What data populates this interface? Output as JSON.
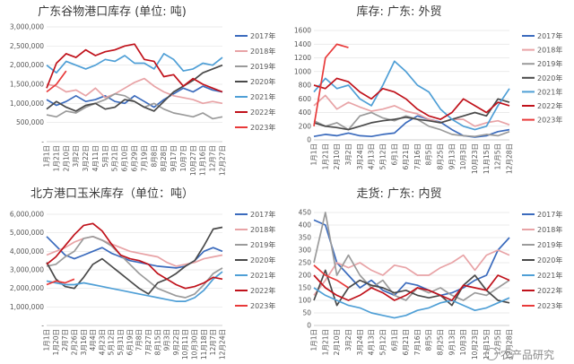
{
  "colors": [
    "#3b6bbd",
    "#e8a3a6",
    "#9b9b9b",
    "#4a4a4a",
    "#4f9fd6",
    "#c0121b",
    "#e83a3a"
  ],
  "watermark": "农产品研究",
  "chart_data": [
    {
      "type": "line",
      "title": "广东谷物港口库存 (单位: 吨)",
      "ylim": [
        0,
        3000000
      ],
      "yticks": [
        "-",
        "500,000",
        "1,000,000",
        "1,500,000",
        "2,000,000",
        "2,500,000",
        "3,000,000"
      ],
      "xticks": [
        "1月1日",
        "1月21日",
        "2月10日",
        "3月2日",
        "3月22日",
        "4月11日",
        "5月1日",
        "5月21日",
        "6月10日",
        "6月29日",
        "7月19日",
        "8月8日",
        "8月28日",
        "9月17日",
        "10月7日",
        "10月27日",
        "11月16日",
        "12月7日",
        "12月27日"
      ],
      "grid": true,
      "legend_position": "right",
      "series": [
        {
          "name": "2017年",
          "values": [
            1100000,
            950000,
            1050000,
            1200000,
            1050000,
            1100000,
            1200000,
            1050000,
            1000000,
            1200000,
            1050000,
            900000,
            1100000,
            1250000,
            1400000,
            1300000,
            1450000,
            1350000,
            1300000
          ]
        },
        {
          "name": "2018年",
          "values": [
            1500000,
            1450000,
            1300000,
            1350000,
            1200000,
            1400000,
            1150000,
            1250000,
            1400000,
            1550000,
            1650000,
            1450000,
            1300000,
            1200000,
            1150000,
            1100000,
            1000000,
            1050000,
            1000000
          ]
        },
        {
          "name": "2019年",
          "values": [
            700000,
            650000,
            800000,
            750000,
            900000,
            1000000,
            1100000,
            1250000,
            1200000,
            1050000,
            900000,
            1000000,
            850000,
            750000,
            700000,
            650000,
            750000,
            600000,
            650000
          ]
        },
        {
          "name": "2020年",
          "values": [
            850000,
            1050000,
            900000,
            800000,
            950000,
            1000000,
            850000,
            900000,
            1100000,
            1050000,
            900000,
            800000,
            1050000,
            1300000,
            1450000,
            1600000,
            1800000,
            1900000,
            2000000
          ]
        },
        {
          "name": "2021年",
          "values": [
            2000000,
            1800000,
            2100000,
            2000000,
            1900000,
            2000000,
            2150000,
            2100000,
            2250000,
            2050000,
            2050000,
            1900000,
            2300000,
            2150000,
            1850000,
            1900000,
            2050000,
            2000000,
            2200000
          ]
        },
        {
          "name": "2022年",
          "values": [
            1400000,
            2050000,
            2300000,
            2200000,
            2400000,
            2250000,
            2350000,
            2400000,
            2500000,
            2550000,
            2150000,
            2100000,
            1700000,
            1750000,
            1450000,
            1650000,
            1500000,
            1400000,
            1300000
          ]
        },
        {
          "name": "2023年",
          "values": [
            1300000,
            1500000,
            1850000
          ]
        }
      ]
    },
    {
      "type": "line",
      "title": "库存: 广东: 外贸",
      "ylim": [
        0,
        1600
      ],
      "yticks": [
        "0",
        "200",
        "400",
        "600",
        "800",
        "1000",
        "1200",
        "1400",
        "1600"
      ],
      "xticks": [
        "1月1日",
        "1月21日",
        "2月10日",
        "3月2日",
        "3月24日",
        "4月13日",
        "5月12日",
        "6月1日",
        "6月21日",
        "7月16日",
        "8月5日",
        "8月25日",
        "9月13日",
        "10月3日",
        "10月23日",
        "11月15日",
        "12月5日",
        "12月28日"
      ],
      "grid": true,
      "legend_position": "right",
      "series": [
        {
          "name": "2017年",
          "values": [
            50,
            80,
            60,
            100,
            60,
            50,
            80,
            100,
            250,
            350,
            300,
            260,
            150,
            60,
            40,
            60,
            120,
            150
          ]
        },
        {
          "name": "2018年",
          "values": [
            500,
            650,
            450,
            550,
            480,
            420,
            450,
            500,
            420,
            380,
            300,
            250,
            300,
            300,
            200,
            250,
            280,
            220
          ]
        },
        {
          "name": "2019年",
          "values": [
            280,
            200,
            250,
            150,
            350,
            400,
            320,
            280,
            350,
            300,
            200,
            150,
            80,
            60,
            50,
            80,
            60,
            120
          ]
        },
        {
          "name": "2020年",
          "values": [
            250,
            200,
            180,
            150,
            200,
            250,
            280,
            300,
            330,
            300,
            280,
            250,
            300,
            350,
            400,
            350,
            600,
            550
          ]
        },
        {
          "name": "2021年",
          "values": [
            700,
            900,
            750,
            800,
            600,
            500,
            800,
            1150,
            1000,
            800,
            700,
            450,
            300,
            200,
            150,
            200,
            500,
            750
          ]
        },
        {
          "name": "2022年",
          "values": [
            800,
            750,
            900,
            850,
            700,
            600,
            750,
            700,
            600,
            450,
            350,
            300,
            400,
            600,
            500,
            400,
            550,
            500
          ]
        },
        {
          "name": "2023年",
          "values": [
            200,
            1200,
            1400,
            1350
          ]
        }
      ]
    },
    {
      "type": "line",
      "title": "北方港口玉米库存（单位：吨）",
      "ylim": [
        0,
        6000000
      ],
      "yticks": [
        "-",
        "1,000,000",
        "2,000,000",
        "3,000,000",
        "4,000,000",
        "5,000,000",
        "6,000,000"
      ],
      "xticks": [
        "1月1日",
        "1月20日",
        "2月7日",
        "2月26日",
        "3月16日",
        "4月4日",
        "4月23日",
        "5月12日",
        "5月31日",
        "6月19日",
        "7月8日",
        "7月27日",
        "8月15日",
        "9月3日",
        "9月22日",
        "10月11日",
        "10月30日",
        "11月18日",
        "12月7日",
        "12月24日"
      ],
      "grid": true,
      "legend_position": "right",
      "series": [
        {
          "name": "2017年",
          "values": [
            4800000,
            4300000,
            3800000,
            3600000,
            3800000,
            4000000,
            4200000,
            3900000,
            3700000,
            3500000,
            3400000,
            3300000,
            3200000,
            3150000,
            3100000,
            3200000,
            3500000,
            4000000,
            4200000,
            4000000
          ]
        },
        {
          "name": "2018年",
          "values": [
            3800000,
            4000000,
            4200000,
            4500000,
            4700000,
            4800000,
            4600000,
            4400000,
            4200000,
            4000000,
            3900000,
            3800000,
            3700000,
            3400000,
            3200000,
            3300000,
            3400000,
            3600000,
            3700000,
            3800000
          ]
        },
        {
          "name": "2019年",
          "values": [
            3200000,
            3300000,
            3700000,
            4000000,
            4700000,
            4800000,
            4600000,
            4300000,
            3800000,
            3300000,
            2800000,
            2400000,
            2000000,
            1800000,
            1600000,
            1500000,
            1700000,
            2200000,
            2800000,
            3100000
          ]
        },
        {
          "name": "2020年",
          "values": [
            3400000,
            2500000,
            2100000,
            2000000,
            2600000,
            3300000,
            3600000,
            3200000,
            2800000,
            2400000,
            2000000,
            1700000,
            2300000,
            2500000,
            2800000,
            3200000,
            3500000,
            4300000,
            5200000,
            5300000
          ]
        },
        {
          "name": "2021年",
          "values": [
            2400000,
            2300000,
            2200000,
            2200000,
            2300000,
            2200000,
            2100000,
            2000000,
            1900000,
            1800000,
            1700000,
            1600000,
            1500000,
            1400000,
            1300000,
            1300000,
            1500000,
            1900000,
            2500000,
            2900000
          ]
        },
        {
          "name": "2022年",
          "values": [
            3300000,
            3700000,
            4300000,
            4900000,
            5400000,
            5500000,
            5100000,
            4400000,
            3800000,
            3600000,
            3500000,
            3300000,
            2800000,
            2500000,
            2200000,
            2000000,
            2100000,
            2300000,
            2600000,
            2500000
          ]
        },
        {
          "name": "2023年",
          "values": [
            2200000,
            2400000,
            2300000,
            2500000
          ]
        }
      ]
    },
    {
      "type": "line",
      "title": "走货: 广东: 内贸",
      "ylim": [
        0,
        450
      ],
      "yticks": [
        "0",
        "50",
        "100",
        "150",
        "200",
        "250",
        "300",
        "350",
        "400",
        "450"
      ],
      "xticks": [
        "1月1日",
        "1月21日",
        "2月10日",
        "3月2日",
        "3月24日",
        "4月13日",
        "5月12日",
        "6月1日",
        "6月21日",
        "7月16日",
        "8月5日",
        "8月25日",
        "9月13日",
        "10月3日",
        "10月23日",
        "11月15日",
        "12月5日",
        "12月28日"
      ],
      "grid": true,
      "legend_position": "right",
      "series": [
        {
          "name": "2017年",
          "values": [
            420,
            400,
            250,
            200,
            150,
            180,
            140,
            120,
            170,
            160,
            140,
            120,
            130,
            150,
            180,
            200,
            300,
            350
          ]
        },
        {
          "name": "2018年",
          "values": [
            120,
            180,
            250,
            230,
            250,
            220,
            200,
            240,
            230,
            200,
            200,
            230,
            250,
            280,
            220,
            280,
            300,
            280
          ]
        },
        {
          "name": "2019年",
          "values": [
            250,
            450,
            200,
            280,
            200,
            150,
            180,
            120,
            100,
            150,
            130,
            150,
            120,
            100,
            130,
            120,
            150,
            180
          ]
        },
        {
          "name": "2020年",
          "values": [
            100,
            220,
            80,
            150,
            180,
            160,
            150,
            130,
            140,
            120,
            110,
            120,
            80,
            160,
            200,
            140,
            100,
            90
          ]
        },
        {
          "name": "2021年",
          "values": [
            150,
            120,
            100,
            80,
            70,
            50,
            40,
            30,
            40,
            60,
            70,
            90,
            100,
            80,
            60,
            70,
            90,
            110
          ]
        },
        {
          "name": "2022年",
          "values": [
            200,
            150,
            120,
            100,
            120,
            150,
            130,
            100,
            120,
            150,
            140,
            120,
            100,
            160,
            150,
            140,
            200,
            180
          ]
        },
        {
          "name": "2023年",
          "values": [
            240,
            200,
            180,
            150
          ]
        }
      ]
    }
  ]
}
